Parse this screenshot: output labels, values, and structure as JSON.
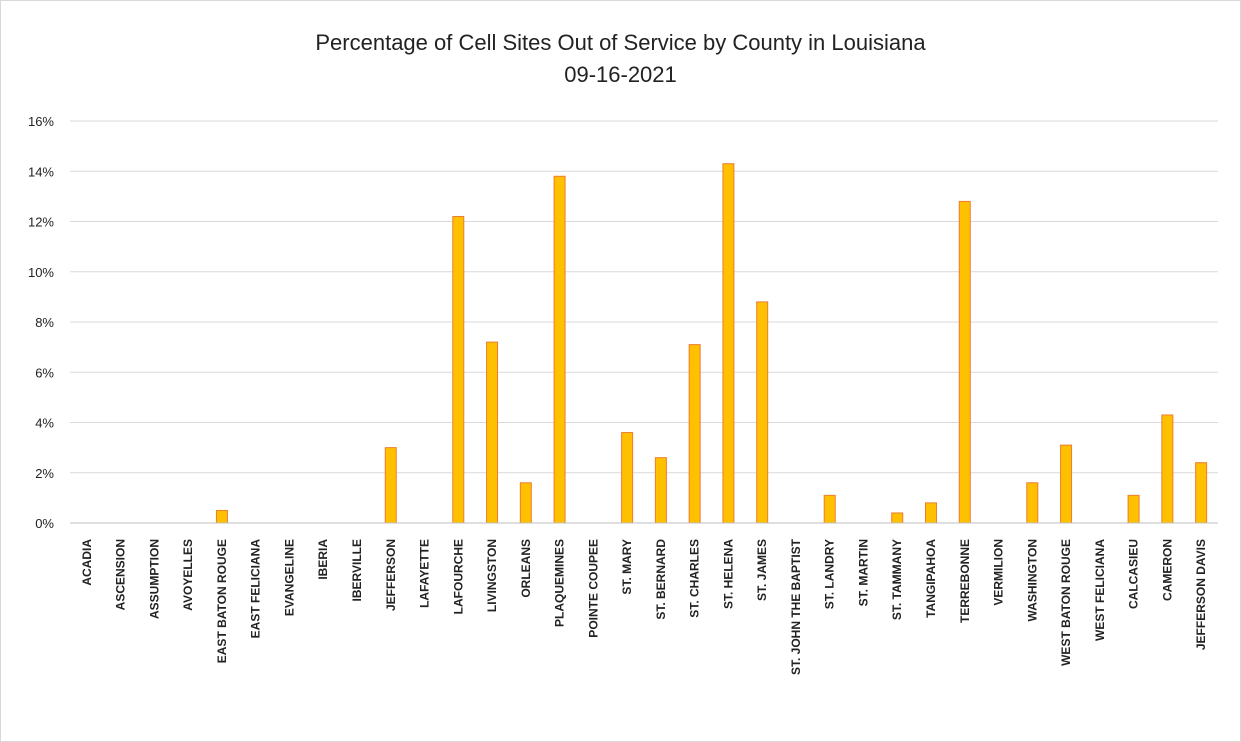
{
  "chart_data": {
    "type": "bar",
    "title": "Percentage of Cell Sites Out of Service by County in Louisiana",
    "subtitle": "09-16-2021",
    "xlabel": "",
    "ylabel": "",
    "ylim": [
      0,
      16
    ],
    "yticks": [
      0,
      2,
      4,
      6,
      8,
      10,
      12,
      14,
      16
    ],
    "ytick_labels": [
      "0%",
      "2%",
      "4%",
      "6%",
      "8%",
      "10%",
      "12%",
      "14%",
      "16%"
    ],
    "grid": true,
    "legend": "none",
    "bar_color": "#FFC000",
    "bar_edge_color": "#ED7D31",
    "categories": [
      "ACADIA",
      "ASCENSION",
      "ASSUMPTION",
      "AVOYELLES",
      "EAST BATON ROUGE",
      "EAST FELICIANA",
      "EVANGELINE",
      "IBERIA",
      "IBERVILLE",
      "JEFFERSON",
      "LAFAYETTE",
      "LAFOURCHE",
      "LIVINGSTON",
      "ORLEANS",
      "PLAQUEMINES",
      "POINTE COUPEE",
      "ST. MARY",
      "ST. BERNARD",
      "ST. CHARLES",
      "ST. HELENA",
      "ST. JAMES",
      "ST. JOHN THE BAPTIST",
      "ST. LANDRY",
      "ST. MARTIN",
      "ST. TAMMANY",
      "TANGIPAHOA",
      "TERREBONNE",
      "VERMILION",
      "WASHINGTON",
      "WEST BATON ROUGE",
      "WEST FELICIANA",
      "CALCASIEU",
      "CAMERON",
      "JEFFERSON DAVIS"
    ],
    "values": [
      0,
      0,
      0,
      0,
      0.5,
      0,
      0,
      0,
      0,
      3.0,
      0,
      12.2,
      7.2,
      1.6,
      13.8,
      0,
      3.6,
      2.6,
      7.1,
      14.3,
      8.8,
      0,
      1.1,
      0,
      0.4,
      0.8,
      12.8,
      0,
      1.6,
      3.1,
      0,
      1.1,
      4.3,
      2.4
    ]
  }
}
